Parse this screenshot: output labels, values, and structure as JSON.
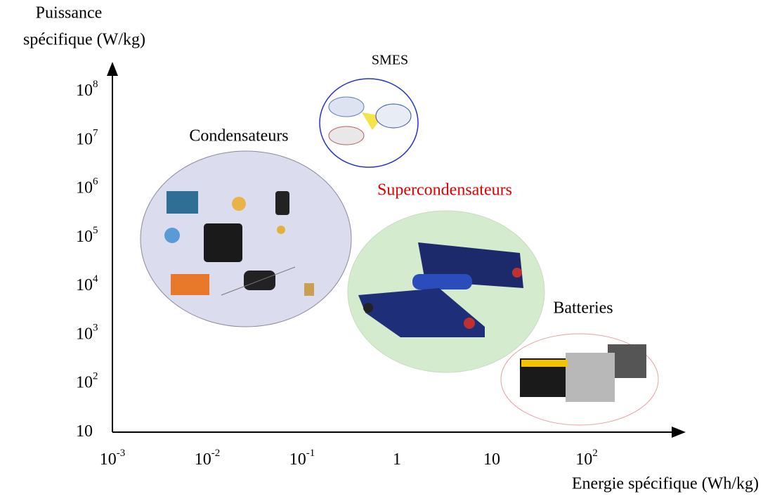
{
  "y_axis": {
    "title": [
      "Puissance",
      "spécifique (W/kg)"
    ],
    "ticks": [
      {
        "base": "10"
      },
      {
        "base": "10",
        "exponent": "2"
      },
      {
        "base": "10",
        "exponent": "3"
      },
      {
        "base": "10",
        "exponent": "4"
      },
      {
        "base": "10",
        "exponent": "5"
      },
      {
        "base": "10",
        "exponent": "6"
      },
      {
        "base": "10",
        "exponent": "7"
      },
      {
        "base": "10",
        "exponent": "8"
      }
    ]
  },
  "x_axis": {
    "title": "Energie spécifique (Wh/kg)",
    "ticks": [
      {
        "base": "10",
        "exponent": "-3"
      },
      {
        "base": "10",
        "exponent": "-2"
      },
      {
        "base": "10",
        "exponent": "-1"
      },
      {
        "base": "1"
      },
      {
        "base": "10"
      },
      {
        "base": "10",
        "exponent": "2"
      }
    ]
  },
  "regions": [
    {
      "label": "SMES"
    },
    {
      "label": "Condensateurs"
    },
    {
      "label": "Supercondensateurs"
    },
    {
      "label": "Batteries"
    }
  ]
}
